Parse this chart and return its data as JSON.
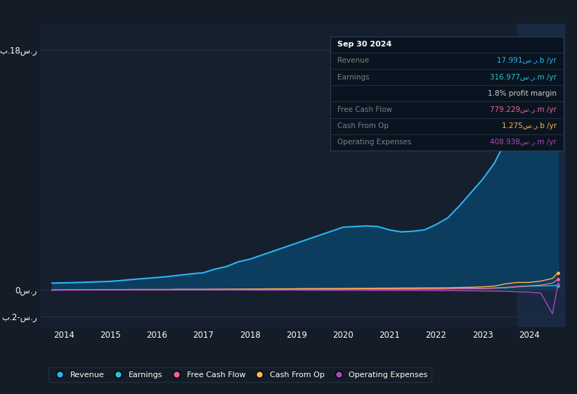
{
  "bg_color": "#131c27",
  "plot_bg_color": "#151f2e",
  "plot_bg_color2": "#1a2840",
  "grid_color": "#253347",
  "highlight_color": "#1c3050",
  "revenue_color": "#29b6f6",
  "earnings_color": "#26c6da",
  "free_cash_flow_color": "#f06292",
  "cash_from_op_color": "#ffb74d",
  "operating_expenses_color": "#ab47bc",
  "fill_revenue_color": "#0d3d5e",
  "years": [
    2013.75,
    2014.0,
    2014.25,
    2014.5,
    2014.75,
    2015.0,
    2015.25,
    2015.5,
    2015.75,
    2016.0,
    2016.25,
    2016.5,
    2016.75,
    2017.0,
    2017.25,
    2017.5,
    2017.75,
    2018.0,
    2018.25,
    2018.5,
    2018.75,
    2019.0,
    2019.25,
    2019.5,
    2019.75,
    2020.0,
    2020.25,
    2020.5,
    2020.75,
    2021.0,
    2021.25,
    2021.5,
    2021.75,
    2022.0,
    2022.25,
    2022.5,
    2022.75,
    2023.0,
    2023.25,
    2023.5,
    2023.75,
    2024.0,
    2024.25,
    2024.5,
    2024.62
  ],
  "revenue": [
    0.5,
    0.52,
    0.54,
    0.57,
    0.6,
    0.63,
    0.7,
    0.78,
    0.85,
    0.92,
    1.0,
    1.1,
    1.2,
    1.28,
    1.55,
    1.75,
    2.1,
    2.3,
    2.6,
    2.9,
    3.2,
    3.5,
    3.8,
    4.1,
    4.4,
    4.7,
    4.75,
    4.8,
    4.75,
    4.5,
    4.35,
    4.4,
    4.5,
    4.9,
    5.4,
    6.3,
    7.3,
    8.3,
    9.5,
    11.2,
    13.2,
    15.2,
    16.7,
    17.6,
    17.991
  ],
  "earnings": [
    0.0,
    0.01,
    0.01,
    0.01,
    0.01,
    0.01,
    0.01,
    0.01,
    0.01,
    0.01,
    0.01,
    0.02,
    0.02,
    0.02,
    0.02,
    0.02,
    0.02,
    0.03,
    0.03,
    0.03,
    0.03,
    0.03,
    0.04,
    0.04,
    0.04,
    0.04,
    0.05,
    0.05,
    0.05,
    0.05,
    0.05,
    0.05,
    0.06,
    0.06,
    0.07,
    0.08,
    0.09,
    0.1,
    0.12,
    0.15,
    0.22,
    0.27,
    0.29,
    0.31,
    0.317
  ],
  "free_cash_flow": [
    -0.04,
    -0.03,
    -0.03,
    -0.02,
    -0.02,
    -0.02,
    -0.02,
    -0.01,
    -0.01,
    0.0,
    0.0,
    0.01,
    0.01,
    0.01,
    0.01,
    0.02,
    0.02,
    0.02,
    0.03,
    0.03,
    0.03,
    0.04,
    0.04,
    0.04,
    0.05,
    0.05,
    0.06,
    0.06,
    0.06,
    0.06,
    0.06,
    0.06,
    0.07,
    0.07,
    0.08,
    0.09,
    0.1,
    0.11,
    0.13,
    0.18,
    0.25,
    0.3,
    0.35,
    0.5,
    0.779
  ],
  "cash_from_op": [
    -0.02,
    -0.01,
    -0.01,
    0.0,
    0.01,
    0.01,
    0.01,
    0.02,
    0.02,
    0.02,
    0.02,
    0.03,
    0.03,
    0.03,
    0.04,
    0.04,
    0.05,
    0.05,
    0.06,
    0.07,
    0.07,
    0.08,
    0.09,
    0.09,
    0.1,
    0.1,
    0.11,
    0.11,
    0.12,
    0.12,
    0.13,
    0.13,
    0.14,
    0.14,
    0.15,
    0.17,
    0.19,
    0.22,
    0.27,
    0.45,
    0.55,
    0.55,
    0.65,
    0.85,
    1.275
  ],
  "operating_expenses": [
    -0.03,
    -0.02,
    -0.02,
    -0.02,
    -0.02,
    -0.02,
    -0.02,
    -0.02,
    -0.02,
    -0.02,
    -0.02,
    -0.02,
    -0.02,
    -0.02,
    -0.02,
    -0.02,
    -0.02,
    -0.03,
    -0.03,
    -0.03,
    -0.03,
    -0.03,
    -0.04,
    -0.04,
    -0.04,
    -0.04,
    -0.04,
    -0.04,
    -0.05,
    -0.05,
    -0.05,
    -0.05,
    -0.05,
    -0.06,
    -0.06,
    -0.07,
    -0.08,
    -0.09,
    -0.1,
    -0.12,
    -0.15,
    -0.18,
    -0.25,
    -1.8,
    0.409
  ],
  "highlight_x_start": 2023.75,
  "highlight_x_end": 2024.75,
  "xlim": [
    2013.5,
    2024.78
  ],
  "ylim": [
    -2.8,
    20.0
  ],
  "ytick_positions": [
    -2,
    0,
    18
  ],
  "ytick_labels": [
    "ب.2-س.ر",
    "0س.ر",
    "ب.18س.ر"
  ],
  "xtick_positions": [
    2014,
    2015,
    2016,
    2017,
    2018,
    2019,
    2020,
    2021,
    2022,
    2023,
    2024
  ],
  "xtick_labels": [
    "2014",
    "2015",
    "2016",
    "2017",
    "2018",
    "2019",
    "2020",
    "2021",
    "2022",
    "2023",
    "2024"
  ],
  "legend_labels": [
    "Revenue",
    "Earnings",
    "Free Cash Flow",
    "Cash From Op",
    "Operating Expenses"
  ],
  "legend_colors": [
    "#29b6f6",
    "#26c6da",
    "#f06292",
    "#ffb74d",
    "#ab47bc"
  ],
  "tooltip_bg": "#0a1420",
  "tooltip_border": "#2a3f55",
  "tooltip_title": "Sep 30 2024",
  "tooltip_rows": [
    {
      "label": "Revenue",
      "value": "17.991س.ر.b /yr",
      "label_color": "#808080",
      "value_color": "#29b6f6"
    },
    {
      "label": "Earnings",
      "value": "316.977س.ر.m /yr",
      "label_color": "#808080",
      "value_color": "#26c6da"
    },
    {
      "label": "",
      "value": "1.8% profit margin",
      "label_color": "#808080",
      "value_color": "#cccccc"
    },
    {
      "label": "Free Cash Flow",
      "value": "779.229س.ر.m /yr",
      "label_color": "#808080",
      "value_color": "#f06292"
    },
    {
      "label": "Cash From Op",
      "value": "1.275س.ر.b /yr",
      "label_color": "#808080",
      "value_color": "#ffb74d"
    },
    {
      "label": "Operating Expenses",
      "value": "408.938س.ر.m /yr",
      "label_color": "#808080",
      "value_color": "#ab47bc"
    }
  ]
}
